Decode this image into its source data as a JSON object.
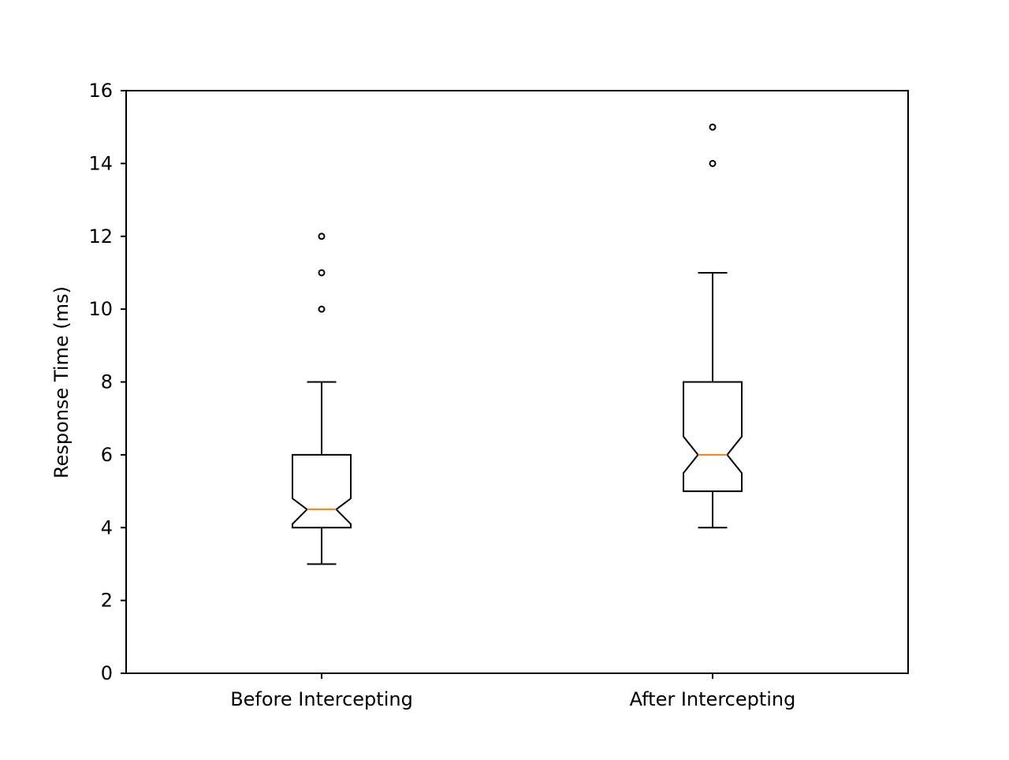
{
  "chart_data": {
    "type": "boxplot",
    "notched": true,
    "title": "",
    "xlabel": "",
    "ylabel": "Response Time (ms)",
    "ylim": [
      0,
      16
    ],
    "yticks": [
      0,
      2,
      4,
      6,
      8,
      10,
      12,
      14,
      16
    ],
    "grid": false,
    "categories": [
      "Before Intercepting",
      "After Intercepting"
    ],
    "boxes": [
      {
        "label": "Before Intercepting",
        "whisker_low": 3,
        "q1": 4,
        "median": 4.5,
        "q3": 6,
        "whisker_high": 8,
        "notch_low": 4.1,
        "notch_high": 4.8,
        "outliers": [
          10,
          11,
          12
        ]
      },
      {
        "label": "After Intercepting",
        "whisker_low": 4,
        "q1": 5,
        "median": 6,
        "q3": 8,
        "whisker_high": 11,
        "notch_low": 5.5,
        "notch_high": 6.5,
        "outliers": [
          14,
          15
        ]
      }
    ],
    "colors": {
      "box": "#000000",
      "median": "#ff7f0e",
      "outlier": "#000000"
    }
  }
}
